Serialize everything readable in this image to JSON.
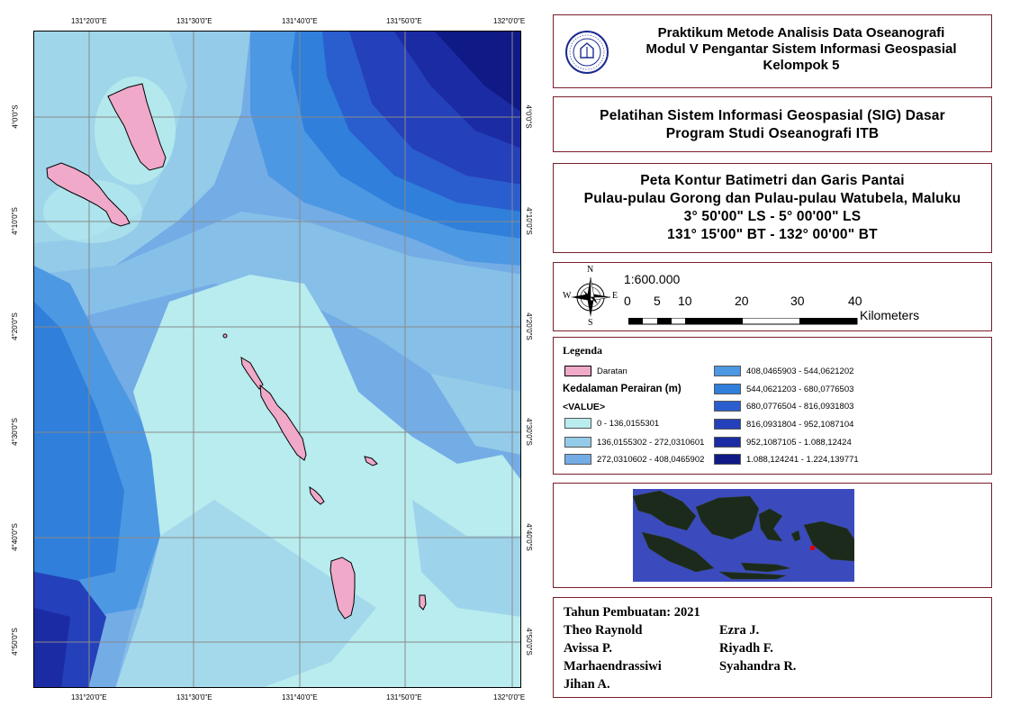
{
  "map": {
    "lon_labels": [
      "131°20'0\"E",
      "131°30'0\"E",
      "131°40'0\"E",
      "131°50'0\"E",
      "132°0'0\"E"
    ],
    "lat_labels": [
      "4°0'0\"S",
      "4°10'0\"S",
      "4°20'0\"S",
      "4°30'0\"S",
      "4°40'0\"S",
      "4°50'0\"S"
    ]
  },
  "header": {
    "line1": "Praktikum Metode Analisis Data Oseanografi",
    "line2": "Modul V Pengantar Sistem Informasi Geospasial",
    "line3": "Kelompok 5",
    "logo_text": "INSTITUT TEKNOLOGI BANDUNG"
  },
  "course": {
    "line1": "Pelatihan Sistem Informasi Geospasial (SIG) Dasar",
    "line2": "Program Studi Oseanografi ITB"
  },
  "map_title": {
    "line1": "Peta Kontur Batimetri dan Garis Pantai",
    "line2": "Pulau-pulau Gorong dan Pulau-pulau Watubela, Maluku",
    "line3": "3° 50'00\" LS - 5° 00'00\" LS",
    "line4": "131° 15'00\" BT - 132° 00'00\" BT"
  },
  "scale": {
    "ratio": "1:600.000",
    "ticks": [
      "0",
      "5",
      "10",
      "20",
      "30",
      "40"
    ],
    "unit": "Kilometers",
    "compass": {
      "n": "N",
      "s": "S",
      "e": "E",
      "w": "W"
    }
  },
  "legend": {
    "title": "Legenda",
    "land_label": "Daratan",
    "depth_title": "Kedalaman Perairan (m)",
    "value_label": "<VALUE>",
    "classes": [
      {
        "label": "0 - 136,0155301",
        "color": "#b8ecee"
      },
      {
        "label": "136,0155302 - 272,0310601",
        "color": "#93cbe9"
      },
      {
        "label": "272,0310602 - 408,0465902",
        "color": "#74ace6"
      },
      {
        "label": "408,0465903 - 544,0621202",
        "color": "#4d98e3"
      },
      {
        "label": "544,0621203 - 680,0776503",
        "color": "#2f7fdb"
      },
      {
        "label": "680,0776504 - 816,0931803",
        "color": "#2a5ece"
      },
      {
        "label": "816,0931804 - 952,1087104",
        "color": "#2440ba"
      },
      {
        "label": "952,1087105 - 1.088,12424",
        "color": "#1b2ba4"
      },
      {
        "label": "1.088,124241 - 1.224,139771",
        "color": "#0f1a86"
      }
    ],
    "land_color": "#f0a9c9"
  },
  "credits": {
    "year": "Tahun Pembuatan: 2021",
    "names_left": [
      "Theo Raynold",
      "Avissa P.",
      "Marhaendrassiwi",
      "Jihan A."
    ],
    "names_right": [
      "Ezra J.",
      "Riyadh F.",
      "Syahandra R."
    ]
  }
}
